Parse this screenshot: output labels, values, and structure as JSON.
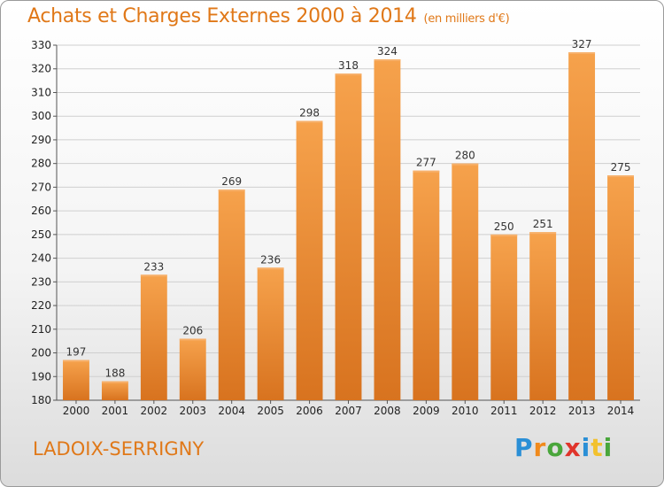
{
  "chart_data": {
    "type": "bar",
    "title": "Achats et Charges Externes 2000 à 2014",
    "subtitle": "(en milliers d'€)",
    "categories": [
      "2000",
      "2001",
      "2002",
      "2003",
      "2004",
      "2005",
      "2006",
      "2007",
      "2008",
      "2009",
      "2010",
      "2011",
      "2012",
      "2013",
      "2014"
    ],
    "values": [
      197,
      188,
      233,
      206,
      269,
      236,
      298,
      318,
      324,
      277,
      280,
      250,
      251,
      327,
      275
    ],
    "ylim": [
      180,
      330
    ],
    "yticks": [
      180,
      190,
      200,
      210,
      220,
      230,
      240,
      250,
      260,
      270,
      280,
      290,
      300,
      310,
      320,
      330
    ],
    "grid": true,
    "bar_color": "#f0923a",
    "bar_color_dark": "#d86f1c"
  },
  "footer": {
    "town": "LADOIX-SERRIGNY",
    "logo_letters": [
      "P",
      "r",
      "o",
      "x",
      "i",
      "t",
      "i"
    ]
  }
}
